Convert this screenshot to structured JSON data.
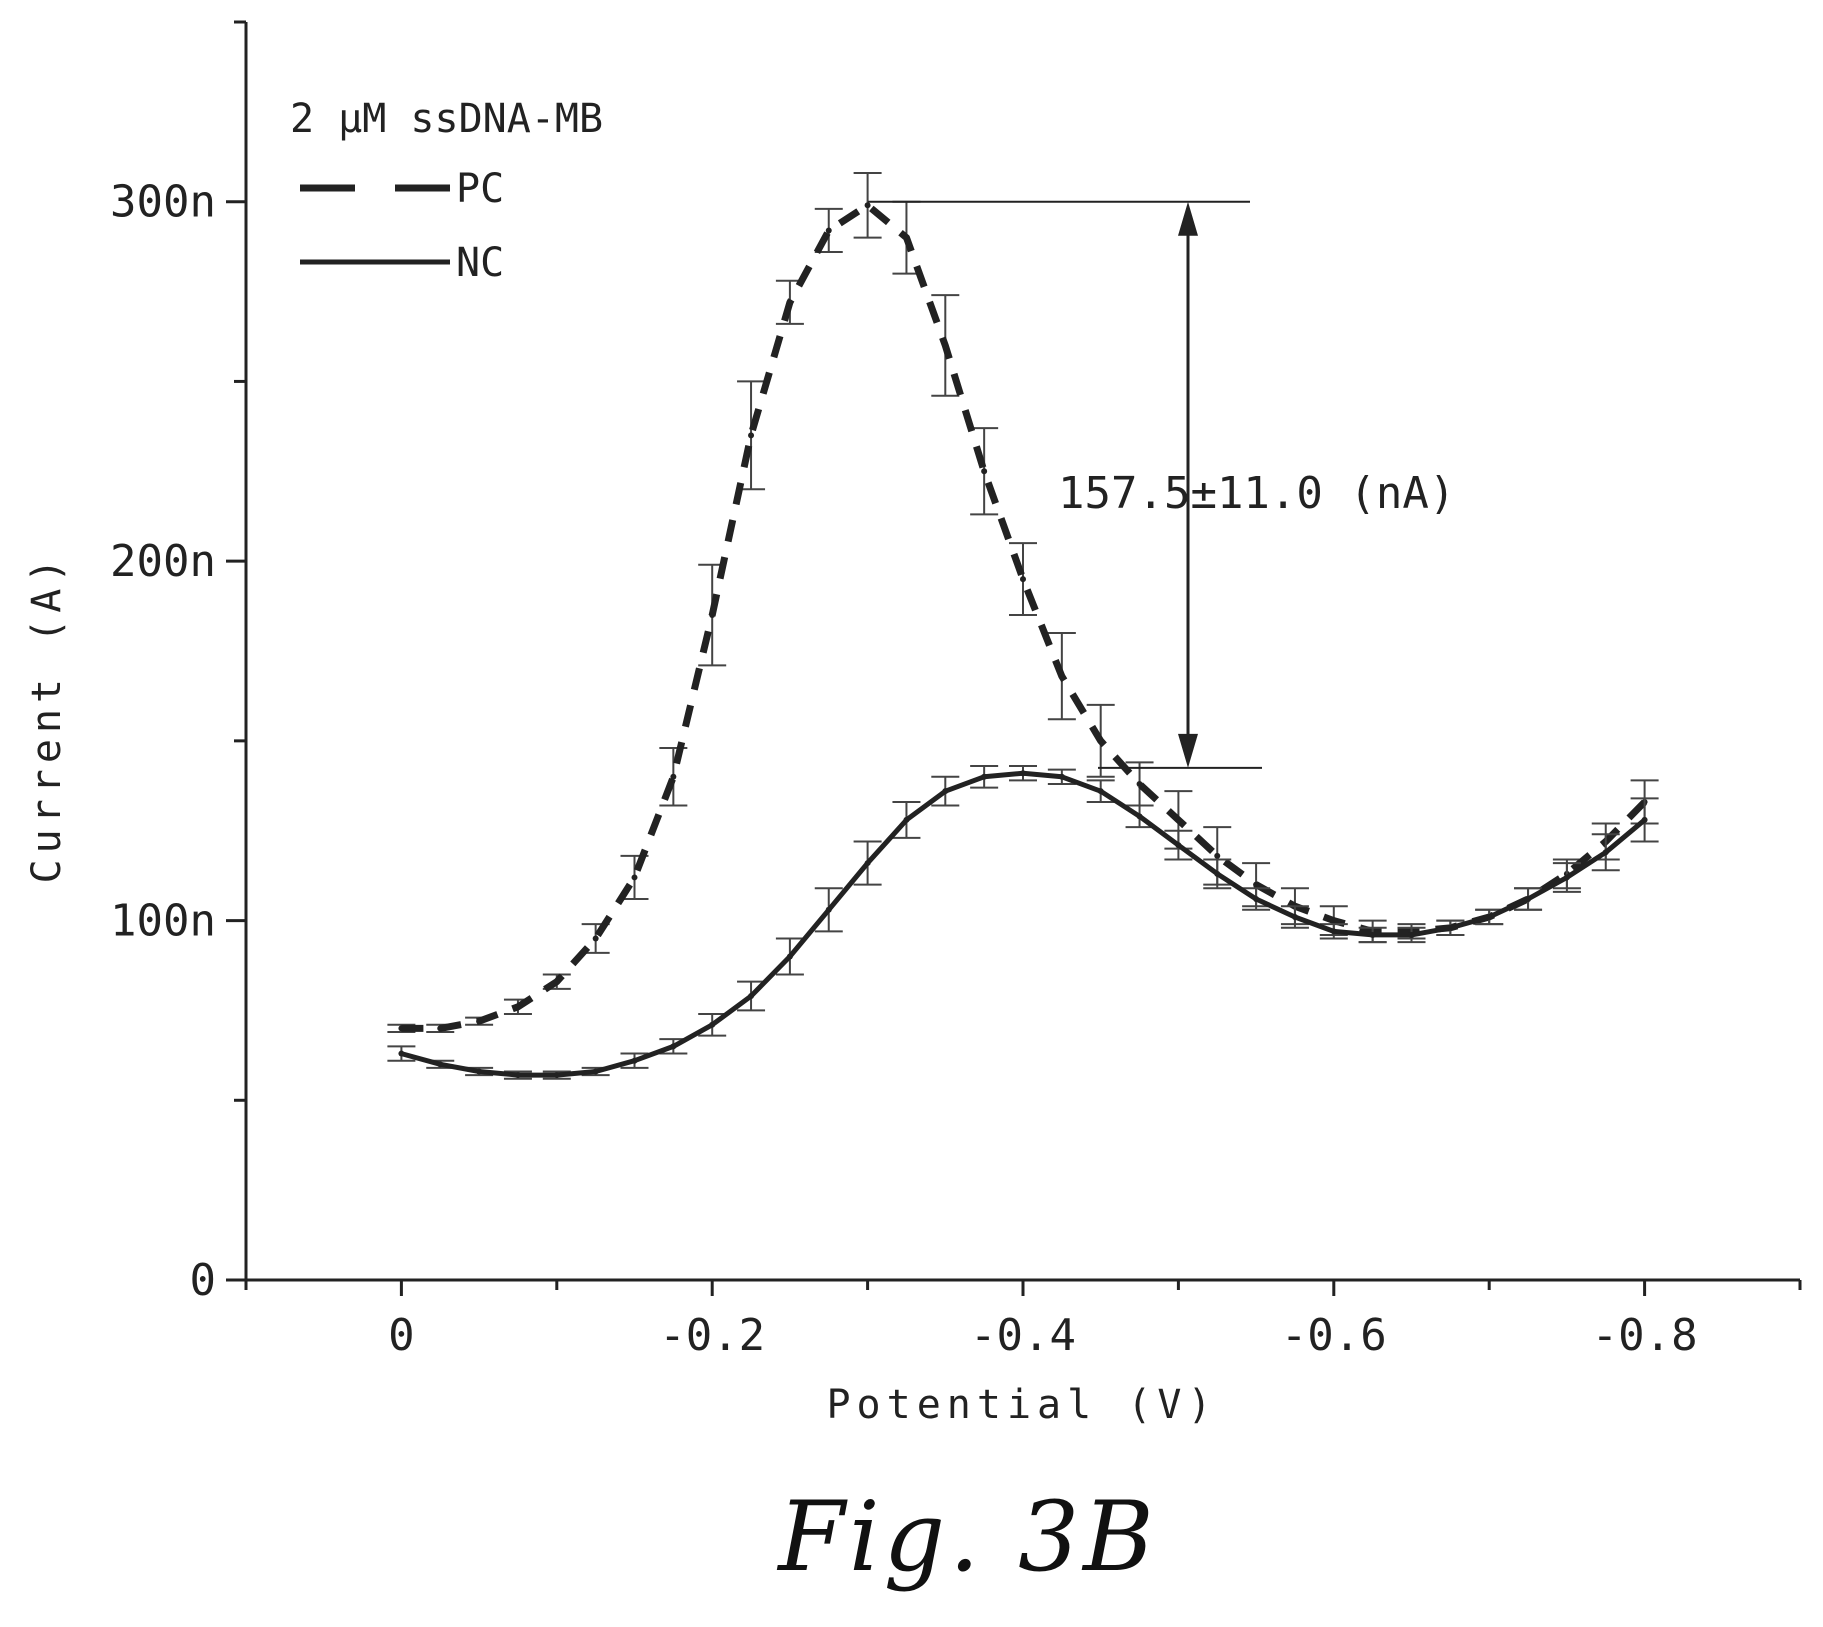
{
  "chart_data": {
    "type": "line",
    "xlabel": "Potential (V)",
    "ylabel": "Current (A)",
    "xlim": [
      0.1,
      -0.9
    ],
    "ylim": [
      0,
      350
    ],
    "x_ticks": [
      0,
      -0.2,
      -0.4,
      -0.6,
      -0.8
    ],
    "x_tick_labels": [
      "0",
      "-0.2",
      "-0.4",
      "-0.6",
      "-0.8"
    ],
    "y_ticks": [
      0,
      100,
      200,
      300
    ],
    "y_tick_labels": [
      "0",
      "100n",
      "200n",
      "300n"
    ],
    "legend": {
      "title": "2 μM ssDNA-MB",
      "position": "top-left",
      "entries": [
        {
          "label": "PC",
          "style": "dashed"
        },
        {
          "label": "NC",
          "style": "solid"
        }
      ]
    },
    "series": [
      {
        "name": "PC",
        "style": "dashed",
        "error_bars": true,
        "x": [
          0,
          -0.025,
          -0.05,
          -0.075,
          -0.1,
          -0.125,
          -0.15,
          -0.175,
          -0.2,
          -0.225,
          -0.25,
          -0.275,
          -0.3,
          -0.325,
          -0.35,
          -0.375,
          -0.4,
          -0.425,
          -0.45,
          -0.475,
          -0.5,
          -0.525,
          -0.55,
          -0.575,
          -0.6,
          -0.625,
          -0.65,
          -0.675,
          -0.7,
          -0.725,
          -0.75,
          -0.775,
          -0.8
        ],
        "y": [
          70,
          70,
          72,
          76,
          83,
          95,
          112,
          140,
          185,
          235,
          272,
          292,
          299,
          290,
          260,
          225,
          195,
          168,
          150,
          138,
          128,
          118,
          110,
          104,
          100,
          97,
          97,
          98,
          101,
          106,
          113,
          122,
          133
        ],
        "yerr": [
          1,
          1,
          1,
          2,
          2,
          4,
          6,
          8,
          14,
          15,
          6,
          6,
          9,
          10,
          14,
          12,
          10,
          12,
          10,
          6,
          8,
          8,
          6,
          5,
          4,
          3,
          2,
          2,
          2,
          3,
          4,
          5,
          6
        ]
      },
      {
        "name": "NC",
        "style": "solid",
        "error_bars": true,
        "x": [
          0,
          -0.025,
          -0.05,
          -0.075,
          -0.1,
          -0.125,
          -0.15,
          -0.175,
          -0.2,
          -0.225,
          -0.25,
          -0.275,
          -0.3,
          -0.325,
          -0.35,
          -0.375,
          -0.4,
          -0.425,
          -0.45,
          -0.475,
          -0.5,
          -0.525,
          -0.55,
          -0.575,
          -0.6,
          -0.625,
          -0.65,
          -0.675,
          -0.7,
          -0.725,
          -0.75,
          -0.775,
          -0.8
        ],
        "y": [
          63,
          60,
          58,
          57,
          57,
          58,
          61,
          65,
          71,
          79,
          90,
          103,
          116,
          128,
          136,
          140,
          141,
          140,
          136,
          129,
          121,
          113,
          106,
          101,
          97,
          96,
          96,
          98,
          101,
          106,
          112,
          119,
          128
        ],
        "yerr": [
          2,
          1,
          1,
          1,
          1,
          1,
          2,
          2,
          3,
          4,
          5,
          6,
          6,
          5,
          4,
          3,
          2,
          2,
          3,
          3,
          4,
          4,
          3,
          3,
          2,
          2,
          2,
          2,
          2,
          3,
          4,
          5,
          6
        ]
      }
    ],
    "annotations": [
      {
        "text": "157.5±11.0 (nA)",
        "type": "difference-arrow",
        "y_top": 300,
        "y_bottom": 142.5
      }
    ]
  },
  "caption": "Fig. 3B"
}
